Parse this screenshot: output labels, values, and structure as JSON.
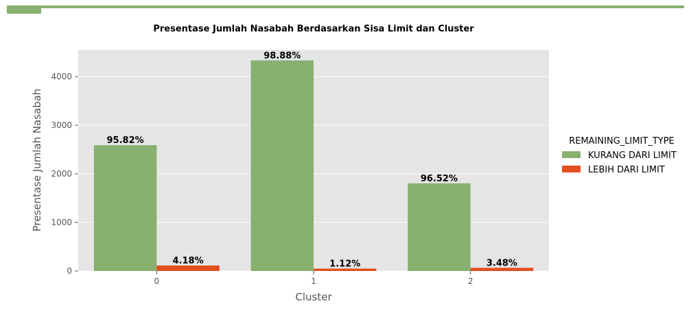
{
  "colors": {
    "accent": "#88b06f",
    "series_1": "#88b06f",
    "series_2": "#e24e1f",
    "plot_bg": "#e5e5e5",
    "grid": "#ffffff"
  },
  "chart_data": {
    "type": "bar",
    "title": "Presentase Jumlah Nasabah Berdasarkan Sisa Limit dan Cluster",
    "xlabel": "Cluster",
    "ylabel": "Presentase Jumlah Nasabah",
    "categories": [
      "0",
      "1",
      "2"
    ],
    "ylim": [
      0,
      4550
    ],
    "yticks": [
      0,
      1000,
      2000,
      3000,
      4000
    ],
    "grid": true,
    "legend": {
      "title": "REMAINING_LIMIT_TYPE",
      "placement": "right"
    },
    "series": [
      {
        "name": "KURANG DARI LIMIT",
        "color": "#88b06f",
        "values": [
          2590,
          4335,
          1805
        ],
        "labels": [
          "95.82%",
          "98.88%",
          "96.52%"
        ]
      },
      {
        "name": "LEBIH DARI LIMIT",
        "color": "#e24e1f",
        "values": [
          113,
          49,
          65
        ],
        "labels": [
          "4.18%",
          "1.12%",
          "3.48%"
        ]
      }
    ]
  }
}
